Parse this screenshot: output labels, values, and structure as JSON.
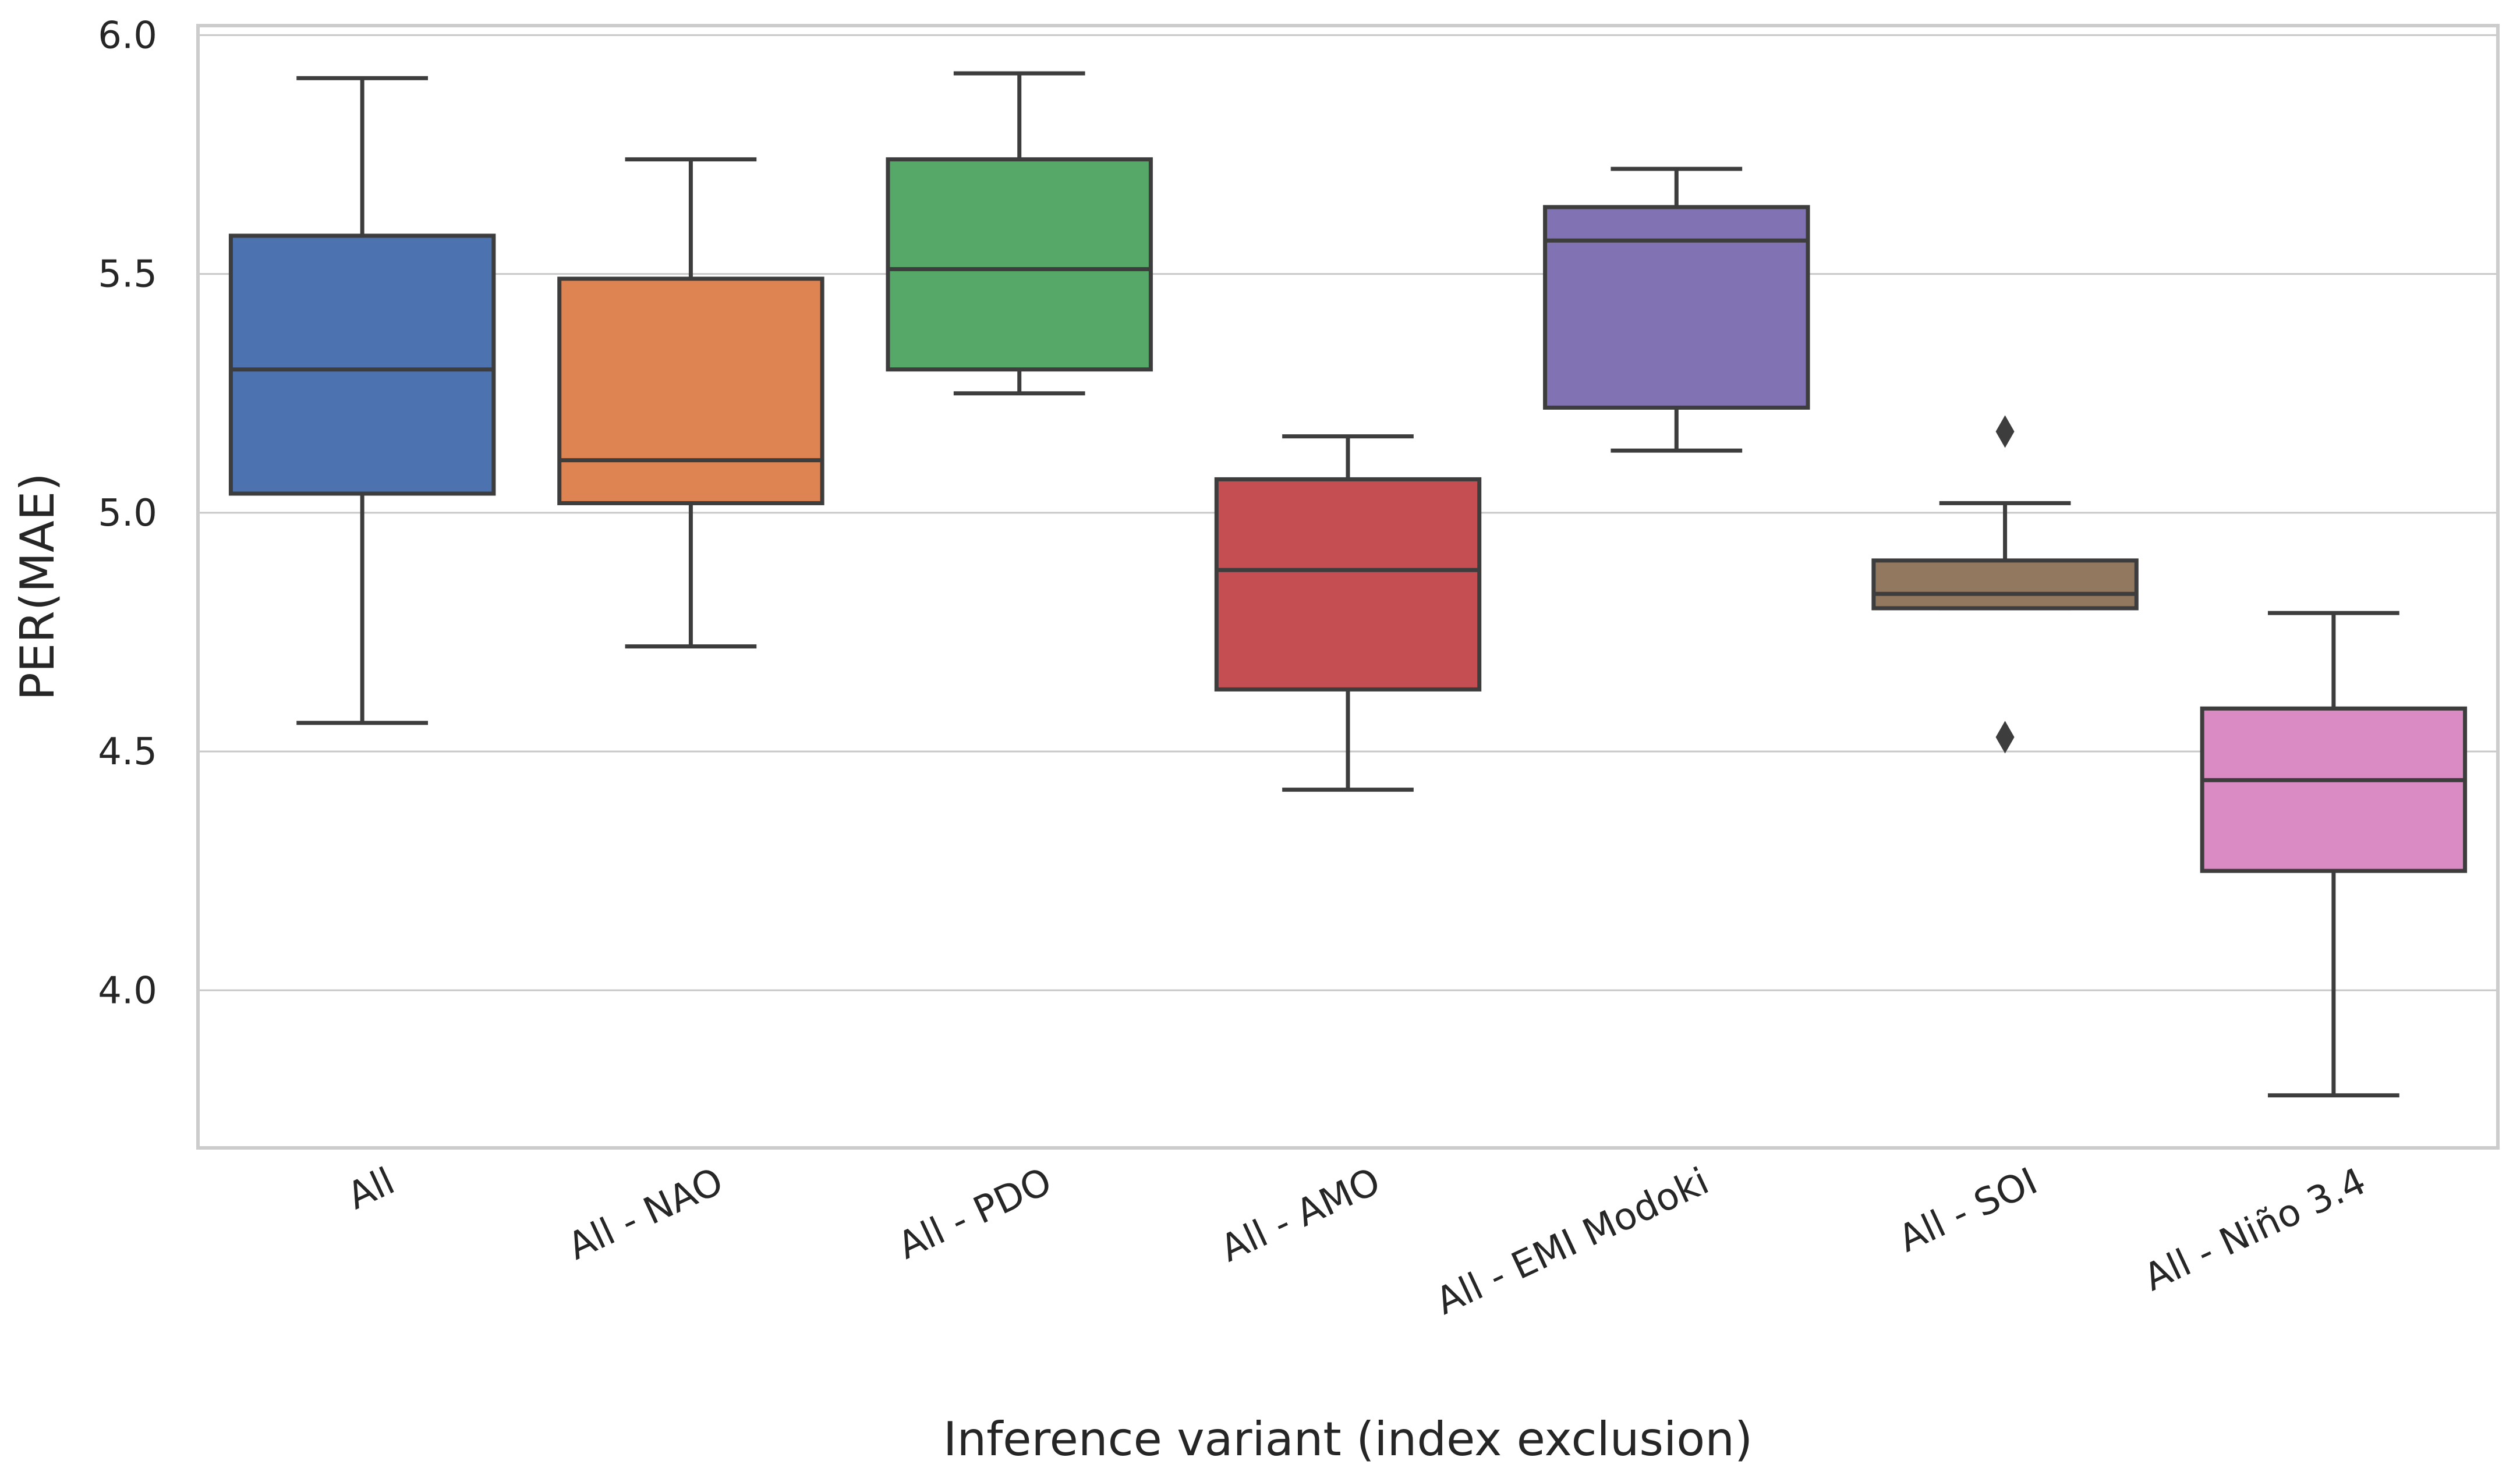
{
  "chart_data": {
    "type": "box",
    "title": "",
    "xlabel": "Inference variant (index exclusion)",
    "ylabel": "PER(MAE)",
    "ylim": [
      3.67,
      6.02
    ],
    "yticks": [
      "4.0",
      "4.5",
      "5.0",
      "5.5",
      "6.0"
    ],
    "ytick_values": [
      4.0,
      4.5,
      5.0,
      5.5,
      6.0
    ],
    "grid": "horizontal",
    "categories": [
      "All",
      "All - NAO",
      "All - PDO",
      "All - AMO",
      "All - EMI Modoki",
      "All - SOI",
      "All - Niño 3.4"
    ],
    "boxes": [
      {
        "label": "All",
        "whisker_low": 4.56,
        "q1": 5.04,
        "median": 5.3,
        "q3": 5.58,
        "whisker_high": 5.91,
        "outliers": [],
        "color": "#4c72b0"
      },
      {
        "label": "All - NAO",
        "whisker_low": 4.72,
        "q1": 5.02,
        "median": 5.11,
        "q3": 5.49,
        "whisker_high": 5.74,
        "outliers": [],
        "color": "#dd8452"
      },
      {
        "label": "All - PDO",
        "whisker_low": 5.25,
        "q1": 5.3,
        "median": 5.51,
        "q3": 5.74,
        "whisker_high": 5.92,
        "outliers": [],
        "color": "#55a868"
      },
      {
        "label": "All - AMO",
        "whisker_low": 4.42,
        "q1": 4.63,
        "median": 4.88,
        "q3": 5.07,
        "whisker_high": 5.16,
        "outliers": [],
        "color": "#c44e52"
      },
      {
        "label": "All - EMI Modoki",
        "whisker_low": 5.13,
        "q1": 5.22,
        "median": 5.57,
        "q3": 5.64,
        "whisker_high": 5.72,
        "outliers": [],
        "color": "#8172b3"
      },
      {
        "label": "All - SOI",
        "whisker_low": 4.8,
        "q1": 4.8,
        "median": 4.83,
        "q3": 4.9,
        "whisker_high": 5.02,
        "outliers": [
          5.17,
          4.53
        ],
        "color": "#937860"
      },
      {
        "label": "All - Niño 3.4",
        "whisker_low": 3.78,
        "q1": 4.25,
        "median": 4.44,
        "q3": 4.59,
        "whisker_high": 4.79,
        "outliers": [],
        "color": "#da8bc3"
      }
    ]
  }
}
